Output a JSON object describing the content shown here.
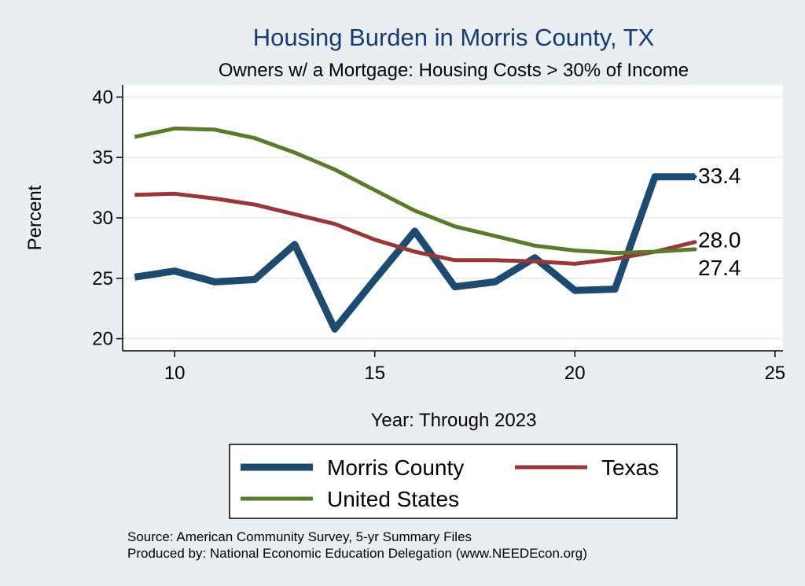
{
  "colors": {
    "background": "#e9eef3",
    "plot_background": "#ffffff",
    "title": "#1a3a6b",
    "grid": "#e4eaef",
    "axis": "#000000"
  },
  "chart_data": {
    "type": "line",
    "title": "Housing Burden in Morris County, TX",
    "subtitle": "Owners w/ a Mortgage: Housing Costs > 30% of Income",
    "xlabel": "Year: Through 2023",
    "ylabel": "Percent",
    "xlim": [
      8.7,
      25.2
    ],
    "ylim": [
      19.0,
      41.0
    ],
    "x_ticks": [
      10,
      15,
      20,
      25
    ],
    "y_ticks": [
      20,
      25,
      30,
      35,
      40
    ],
    "grid": true,
    "legend_position": "bottom",
    "series": [
      {
        "name": "Morris County",
        "color": "#1f4a70",
        "line_width": 9,
        "end_label": "33.4",
        "x": [
          9,
          10,
          11,
          12,
          13,
          14,
          15,
          16,
          17,
          18,
          19,
          20,
          21,
          22,
          23
        ],
        "values": [
          25.1,
          25.6,
          24.7,
          24.9,
          27.8,
          20.8,
          24.9,
          28.9,
          24.3,
          24.7,
          26.7,
          24.0,
          24.1,
          33.4,
          33.4
        ]
      },
      {
        "name": "Texas",
        "color": "#96383a",
        "line_width": 5,
        "end_label": "28.0",
        "x": [
          9,
          10,
          11,
          12,
          13,
          14,
          15,
          16,
          17,
          18,
          19,
          20,
          21,
          22,
          23
        ],
        "values": [
          31.9,
          32.0,
          31.6,
          31.1,
          30.3,
          29.5,
          28.2,
          27.2,
          26.5,
          26.5,
          26.4,
          26.2,
          26.6,
          27.2,
          28.0
        ]
      },
      {
        "name": "United States",
        "color": "#5a7a2c",
        "line_width": 5,
        "end_label": "27.4",
        "x": [
          9,
          10,
          11,
          12,
          13,
          14,
          15,
          16,
          17,
          18,
          19,
          20,
          21,
          22,
          23
        ],
        "values": [
          36.7,
          37.4,
          37.3,
          36.6,
          35.4,
          34.0,
          32.3,
          30.6,
          29.3,
          28.5,
          27.7,
          27.3,
          27.1,
          27.2,
          27.4
        ]
      }
    ],
    "notes": [
      "Source: American Community Survey, 5-yr Summary Files",
      "Produced by: National Economic Education Delegation (www.NEEDEcon.org)"
    ]
  }
}
